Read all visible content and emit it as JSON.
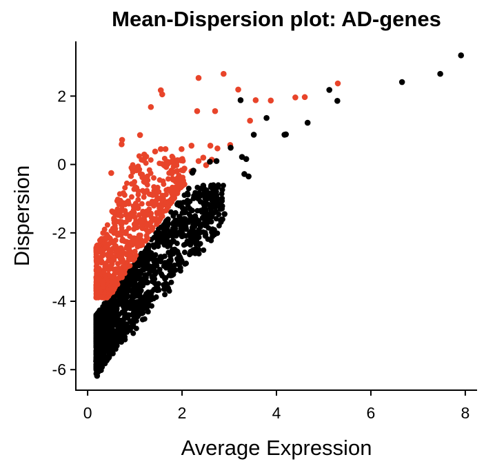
{
  "chart_data": {
    "type": "scatter",
    "title": "Mean-Dispersion plot: AD-genes",
    "xlabel": "Average Expression",
    "ylabel": "Dispersion",
    "xlim": [
      -0.25,
      8.25
    ],
    "ylim": [
      -6.6,
      3.6
    ],
    "xticks": [
      0,
      2,
      4,
      6,
      8
    ],
    "yticks": [
      -6,
      -4,
      -2,
      0,
      2
    ],
    "grid": false,
    "legend": "none",
    "colors": {
      "highlighted": "#e8442a",
      "other": "#000000"
    },
    "series": [
      {
        "color": "#e8442a",
        "points": [
          [
            2.88,
            2.65
          ],
          [
            2.35,
            2.53
          ],
          [
            1.55,
            2.17
          ],
          [
            1.58,
            2.05
          ],
          [
            1.34,
            1.68
          ],
          [
            2.32,
            1.56
          ],
          [
            2.7,
            1.56
          ],
          [
            3.19,
            2.19
          ],
          [
            3.56,
            1.88
          ],
          [
            3.88,
            1.87
          ],
          [
            4.4,
            1.96
          ],
          [
            4.6,
            1.97
          ],
          [
            5.3,
            2.37
          ],
          [
            3.44,
            1.28
          ],
          [
            1.11,
            0.86
          ],
          [
            0.73,
            0.72
          ],
          [
            0.72,
            0.59
          ],
          [
            1.2,
            0.29
          ],
          [
            1.55,
            0.45
          ],
          [
            1.65,
            0.45
          ],
          [
            1.43,
            0.38
          ],
          [
            1.99,
            0.45
          ],
          [
            2.2,
            0.55
          ],
          [
            2.6,
            0.55
          ],
          [
            2.75,
            0.47
          ],
          [
            3.02,
            0.57
          ],
          [
            2.45,
            0.2
          ],
          [
            2.63,
            0.14
          ],
          [
            2.35,
            0.1
          ],
          [
            2.51,
            -0.02
          ],
          [
            2.2,
            -0.2
          ],
          [
            2.05,
            -0.12
          ],
          [
            0.95,
            -0.15
          ],
          [
            0.5,
            -0.25
          ],
          [
            1.92,
            -0.55
          ],
          [
            2.05,
            -0.58
          ],
          [
            1.8,
            -0.42
          ]
        ]
      },
      {
        "color": "#000000",
        "points": [
          [
            7.91,
            3.19
          ],
          [
            7.47,
            2.65
          ],
          [
            6.66,
            2.41
          ],
          [
            5.12,
            2.18
          ],
          [
            5.29,
            1.86
          ],
          [
            4.66,
            1.22
          ],
          [
            4.17,
            0.87
          ],
          [
            4.2,
            0.88
          ],
          [
            3.79,
            1.36
          ],
          [
            3.52,
            0.87
          ],
          [
            3.24,
            1.88
          ],
          [
            3.03,
            0.49
          ],
          [
            3.27,
            0.22
          ],
          [
            3.36,
            0.16
          ],
          [
            3.32,
            -0.28
          ],
          [
            3.41,
            -0.35
          ],
          [
            2.73,
            0.1
          ],
          [
            2.59,
            0.08
          ],
          [
            2.24,
            -0.18
          ],
          [
            2.22,
            -0.24
          ],
          [
            2.45,
            -0.62
          ],
          [
            2.65,
            -0.82
          ],
          [
            2.7,
            -1.25
          ],
          [
            2.9,
            -1.45
          ],
          [
            2.4,
            -1.35
          ],
          [
            2.2,
            -1.95
          ],
          [
            2.0,
            -2.1
          ],
          [
            1.75,
            -2.3
          ],
          [
            1.9,
            -2.55
          ],
          [
            1.55,
            -2.7
          ],
          [
            1.7,
            -2.95
          ],
          [
            1.45,
            -3.15
          ],
          [
            1.35,
            -3.1
          ],
          [
            1.25,
            -3.45
          ],
          [
            1.1,
            -3.75
          ],
          [
            0.95,
            -3.9
          ],
          [
            0.85,
            -4.45
          ],
          [
            0.7,
            -4.65
          ],
          [
            0.6,
            -4.9
          ],
          [
            0.5,
            -5.2
          ],
          [
            0.4,
            -5.45
          ],
          [
            0.3,
            -5.6
          ],
          [
            0.25,
            -5.9
          ],
          [
            0.22,
            -6.05
          ],
          [
            0.2,
            -6.18
          ],
          [
            0.18,
            -5.75
          ],
          [
            0.2,
            -5.3
          ],
          [
            0.22,
            -5.05
          ]
        ]
      }
    ]
  }
}
